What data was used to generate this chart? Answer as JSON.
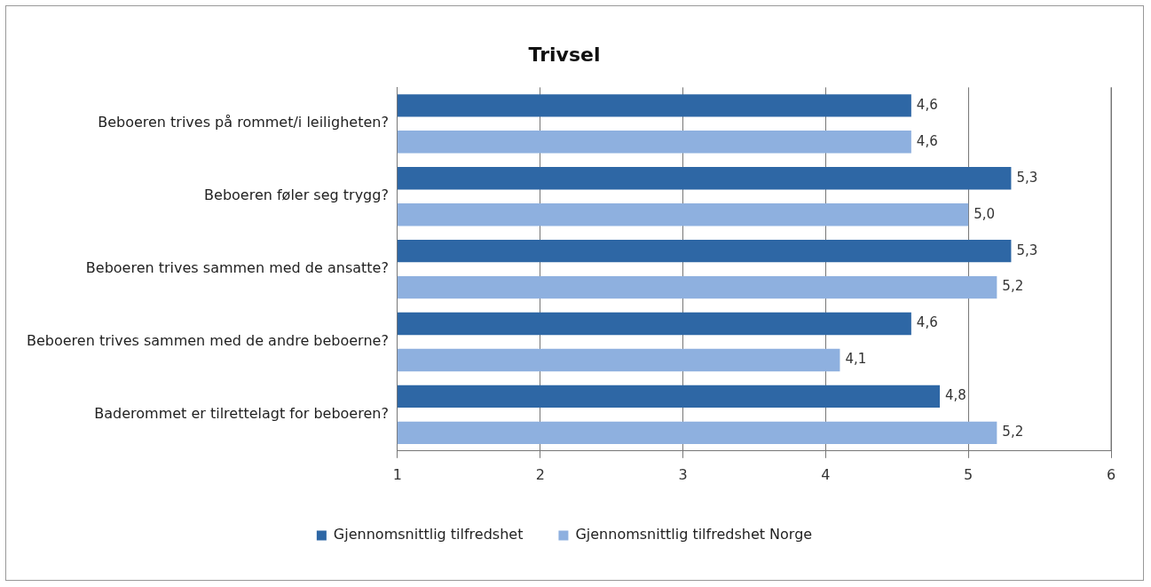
{
  "chart_data": {
    "type": "bar",
    "orientation": "horizontal",
    "title": "Trivsel",
    "categories": [
      "Beboeren trives på rommet/i leiligheten?",
      "Beboeren føler seg trygg?",
      "Beboeren trives sammen med de ansatte?",
      "Beboeren trives sammen med de andre beboerne?",
      "Baderommet er tilrettelagt for beboeren?"
    ],
    "series": [
      {
        "name": "Gjennomsnittlig tilfredshet",
        "color": "#2e67a5",
        "values": [
          4.6,
          5.3,
          5.3,
          4.6,
          4.8
        ],
        "value_labels": [
          "4,6",
          "5,3",
          "5,3",
          "4,6",
          "4,8"
        ]
      },
      {
        "name": "Gjennomsnittlig tilfredshet Norge",
        "color": "#8eb0df",
        "values": [
          4.6,
          5.0,
          5.2,
          4.1,
          5.2
        ],
        "value_labels": [
          "4,6",
          "5,0",
          "5,2",
          "4,1",
          "5,2"
        ]
      }
    ],
    "xlim": [
      1,
      6
    ],
    "xticks": [
      1,
      2,
      3,
      4,
      5,
      6
    ],
    "grid": "x",
    "legend": "bottom"
  }
}
